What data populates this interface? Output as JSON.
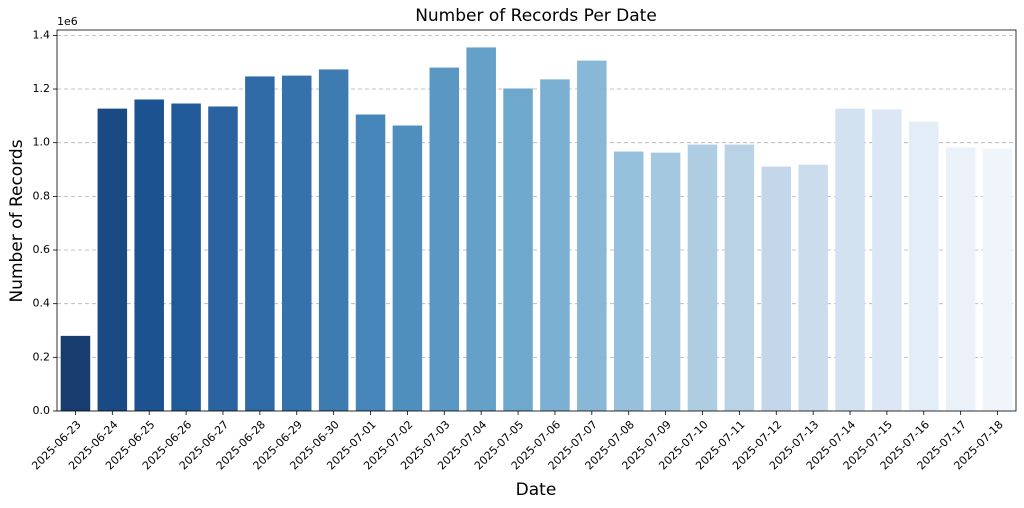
{
  "chart_data": {
    "type": "bar",
    "title": "Number of Records Per Date",
    "x_label": "Date",
    "y_label": "Number of Records",
    "y_offset_label": "1e6",
    "categories": [
      "2025-06-23",
      "2025-06-24",
      "2025-06-25",
      "2025-06-26",
      "2025-06-27",
      "2025-06-28",
      "2025-06-29",
      "2025-06-30",
      "2025-07-01",
      "2025-07-02",
      "2025-07-03",
      "2025-07-04",
      "2025-07-05",
      "2025-07-06",
      "2025-07-07",
      "2025-07-08",
      "2025-07-09",
      "2025-07-10",
      "2025-07-11",
      "2025-07-12",
      "2025-07-13",
      "2025-07-14",
      "2025-07-15",
      "2025-07-16",
      "2025-07-17",
      "2025-07-18"
    ],
    "values": [
      0.28,
      1.127,
      1.161,
      1.146,
      1.135,
      1.247,
      1.25,
      1.273,
      1.105,
      1.064,
      1.28,
      1.355,
      1.202,
      1.236,
      1.306,
      0.967,
      0.963,
      0.993,
      0.993,
      0.911,
      0.918,
      1.127,
      1.124,
      1.079,
      0.982,
      0.978
    ],
    "colors": [
      "#173c6e",
      "#1a4a84",
      "#1c5290",
      "#215a99",
      "#2a63a0",
      "#2f6aa7",
      "#3572ab",
      "#3d7bb1",
      "#4685b9",
      "#4f8fbe",
      "#5a98c3",
      "#64a0c8",
      "#6fa8cd",
      "#7cb0d2",
      "#89b8d7",
      "#97c0dc",
      "#a3c8e0",
      "#aecde3",
      "#b9d2e6",
      "#c3d6ea",
      "#cbdcec",
      "#d3e2f0",
      "#dbe7f4",
      "#e3edf7",
      "#eaf1f9",
      "#f0f5fc"
    ],
    "ylim": [
      0,
      1.42
    ],
    "yticks": [
      {
        "value": 0,
        "label": "0.0"
      },
      {
        "value": 0.2,
        "label": "0.2"
      },
      {
        "value": 0.4,
        "label": "0.4"
      },
      {
        "value": 0.6,
        "label": "0.6"
      },
      {
        "value": 0.8,
        "label": "0.8"
      },
      {
        "value": 1.0,
        "label": "1.0"
      },
      {
        "value": 1.2,
        "label": "1.2"
      },
      {
        "value": 1.4,
        "label": "1.4"
      }
    ],
    "grid": true
  }
}
